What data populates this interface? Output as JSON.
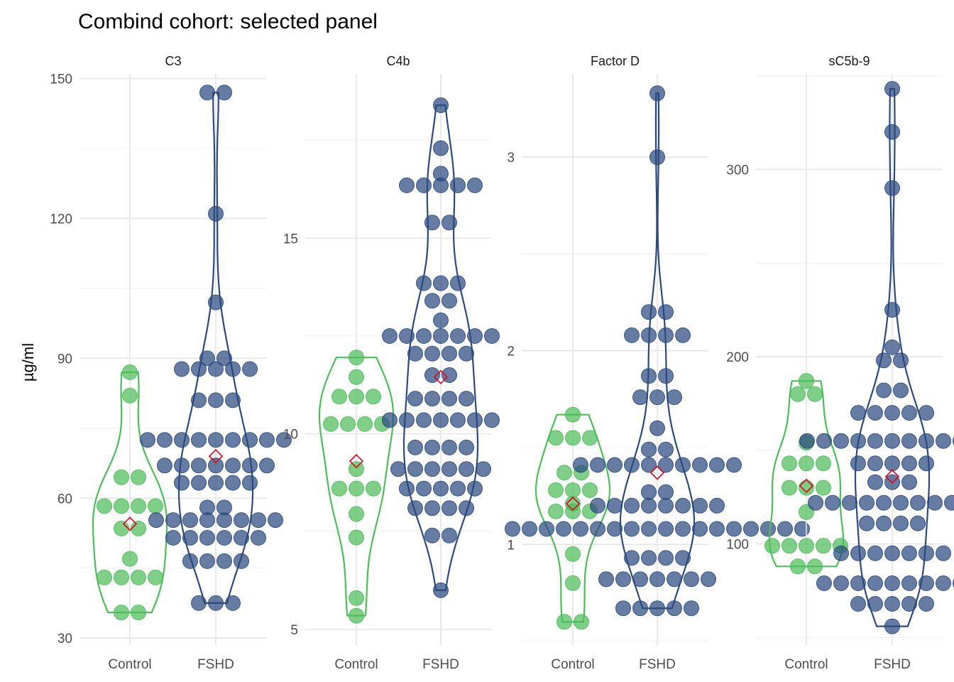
{
  "title": "Combind cohort: selected panel",
  "ylabel": "µg/ml",
  "colors": {
    "Control": "#4dbd5a",
    "FSHD": "#2b4a7e",
    "mean": "#e0001b"
  },
  "chart_data": [
    {
      "type": "violin+dotplot",
      "panel": "C3",
      "ylim": [
        28.5,
        151
      ],
      "yticks": [
        30,
        60,
        90,
        120,
        150
      ],
      "categories": [
        "Control",
        "FSHD"
      ],
      "series": [
        {
          "group": "Control",
          "mean": 54.5,
          "values": [
            35.5,
            35.5,
            43,
            43,
            43,
            43,
            47,
            53.5,
            53.5,
            58.3,
            58.3,
            58.3,
            58.3,
            64.5,
            64.5,
            82,
            87
          ]
        },
        {
          "group": "FSHD",
          "mean": 69,
          "values": [
            37.5,
            37.5,
            37.5,
            46.5,
            46.5,
            46.5,
            46.5,
            51.5,
            51.5,
            51.5,
            51.5,
            51.5,
            51.5,
            55.3,
            55.3,
            55.3,
            55.3,
            55.3,
            55.3,
            55.3,
            55.3,
            58,
            58,
            63.3,
            63.3,
            63.3,
            63.3,
            63.3,
            67,
            67,
            67,
            67,
            67,
            67,
            67,
            72.5,
            72.5,
            72.5,
            72.5,
            72.5,
            72.5,
            72.5,
            72.5,
            72.5,
            81,
            81,
            81,
            87.7,
            87.7,
            87.7,
            87.7,
            87.7,
            90,
            90,
            102,
            121,
            147,
            147
          ]
        }
      ]
    },
    {
      "type": "violin+dotplot",
      "panel": "C4b",
      "ylim": [
        4.6,
        19.2
      ],
      "yticks": [
        5,
        10,
        15
      ],
      "categories": [
        "Control",
        "FSHD"
      ],
      "series": [
        {
          "group": "Control",
          "mean": 9.3,
          "values": [
            5.35,
            5.8,
            7.35,
            7.95,
            8.6,
            8.6,
            8.6,
            9.1,
            10.25,
            10.25,
            10.25,
            10.25,
            10.95,
            10.95,
            10.95,
            11.45,
            11.95
          ]
        },
        {
          "group": "FSHD",
          "mean": 11.45,
          "values": [
            6,
            7.4,
            7.4,
            8.1,
            8.1,
            8.1,
            8.1,
            8.6,
            8.6,
            8.6,
            8.6,
            8.6,
            9.1,
            9.1,
            9.1,
            9.1,
            9.1,
            9.1,
            9.65,
            9.65,
            9.65,
            9.65,
            10.35,
            10.35,
            10.35,
            10.35,
            10.35,
            10.35,
            10.35,
            10.9,
            10.9,
            10.9,
            10.9,
            11.5,
            11.5,
            12.05,
            12.05,
            12.05,
            12.05,
            12.5,
            12.5,
            12.5,
            12.5,
            12.5,
            12.5,
            12.5,
            12.9,
            13.4,
            13.4,
            13.85,
            13.85,
            13.85,
            15.4,
            15.4,
            16.35,
            16.35,
            16.35,
            16.35,
            16.35,
            16.65,
            17.3,
            18.4
          ]
        }
      ]
    },
    {
      "type": "violin+dotplot",
      "panel": "Factor D",
      "ylim": [
        0.48,
        3.43
      ],
      "yticks": [
        1,
        2,
        3
      ],
      "categories": [
        "Control",
        "FSHD"
      ],
      "series": [
        {
          "group": "Control",
          "mean": 1.21,
          "values": [
            0.6,
            0.6,
            0.8,
            0.95,
            1.17,
            1.17,
            1.17,
            1.21,
            1.28,
            1.28,
            1.28,
            1.37,
            1.37,
            1.55,
            1.55,
            1.55,
            1.67
          ]
        },
        {
          "group": "FSHD",
          "mean": 1.37,
          "values": [
            0.67,
            0.67,
            0.67,
            0.67,
            0.67,
            0.82,
            0.82,
            0.82,
            0.82,
            0.82,
            0.82,
            0.82,
            0.93,
            0.93,
            0.93,
            0.93,
            1.08,
            1.08,
            1.08,
            1.08,
            1.08,
            1.08,
            1.08,
            1.08,
            1.08,
            1.08,
            1.08,
            1.08,
            1.08,
            1.08,
            1.08,
            1.08,
            1.08,
            1.08,
            1.2,
            1.2,
            1.2,
            1.2,
            1.2,
            1.2,
            1.2,
            1.2,
            1.27,
            1.27,
            1.41,
            1.41,
            1.41,
            1.41,
            1.41,
            1.41,
            1.41,
            1.41,
            1.41,
            1.41,
            1.49,
            1.49,
            1.6,
            1.76,
            1.76,
            1.76,
            1.87,
            1.87,
            2.08,
            2.08,
            2.08,
            2.08,
            2.2,
            2.2,
            3,
            3.33
          ]
        }
      ]
    },
    {
      "type": "violin+dotplot",
      "panel": "sC5b-9",
      "ylim": [
        46,
        351
      ],
      "yticks": [
        100,
        200,
        300
      ],
      "categories": [
        "Control",
        "FSHD"
      ],
      "series": [
        {
          "group": "Control",
          "mean": 131,
          "values": [
            88,
            88,
            99,
            99,
            99,
            99,
            99,
            117,
            130,
            130,
            130,
            143,
            143,
            143,
            154,
            180,
            180,
            187
          ]
        },
        {
          "group": "FSHD",
          "mean": 136,
          "values": [
            56,
            68,
            68,
            68,
            68,
            68,
            79,
            79,
            79,
            79,
            79,
            79,
            79,
            79,
            79,
            95,
            95,
            95,
            95,
            95,
            95,
            95,
            111,
            111,
            111,
            111,
            122,
            122,
            122,
            122,
            122,
            122,
            122,
            122,
            122,
            122,
            133,
            133,
            133,
            143,
            143,
            143,
            143,
            143,
            155,
            155,
            155,
            155,
            155,
            155,
            155,
            155,
            155,
            155,
            155,
            170,
            170,
            170,
            170,
            170,
            182,
            182,
            198,
            198,
            205,
            225,
            290,
            320,
            343
          ]
        }
      ]
    }
  ]
}
